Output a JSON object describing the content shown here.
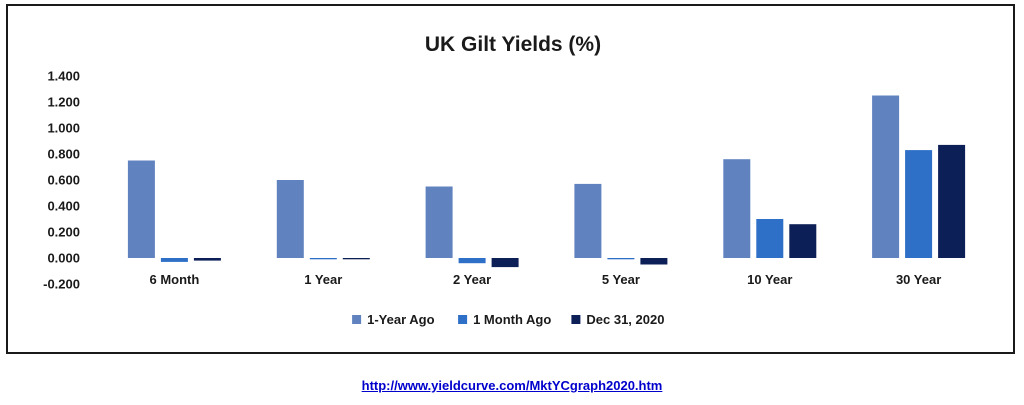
{
  "chart_data": {
    "type": "bar",
    "title": "UK Gilt Yields (%)",
    "categories": [
      "6 Month",
      "1 Year",
      "2 Year",
      "5 Year",
      "10 Year",
      "30 Year"
    ],
    "series": [
      {
        "name": "1-Year Ago",
        "color": "#6083c0",
        "values": [
          0.75,
          0.6,
          0.55,
          0.57,
          0.76,
          1.25
        ]
      },
      {
        "name": "1 Month Ago",
        "color": "#2e6fc7",
        "values": [
          -0.03,
          -0.01,
          -0.04,
          -0.01,
          0.3,
          0.83
        ]
      },
      {
        "name": "Dec 31, 2020",
        "color": "#0d1f57",
        "values": [
          -0.02,
          -0.01,
          -0.07,
          -0.05,
          0.26,
          0.87
        ]
      }
    ],
    "yticks": [
      "1.400",
      "1.200",
      "1.000",
      "0.800",
      "0.600",
      "0.400",
      "0.200",
      "0.000",
      "-0.200"
    ],
    "ylim": [
      -0.2,
      1.4
    ],
    "legend_position": "bottom",
    "grid": false
  },
  "footer": {
    "source_url": "http://www.yieldcurve.com/MktYCgraph2020.htm"
  }
}
